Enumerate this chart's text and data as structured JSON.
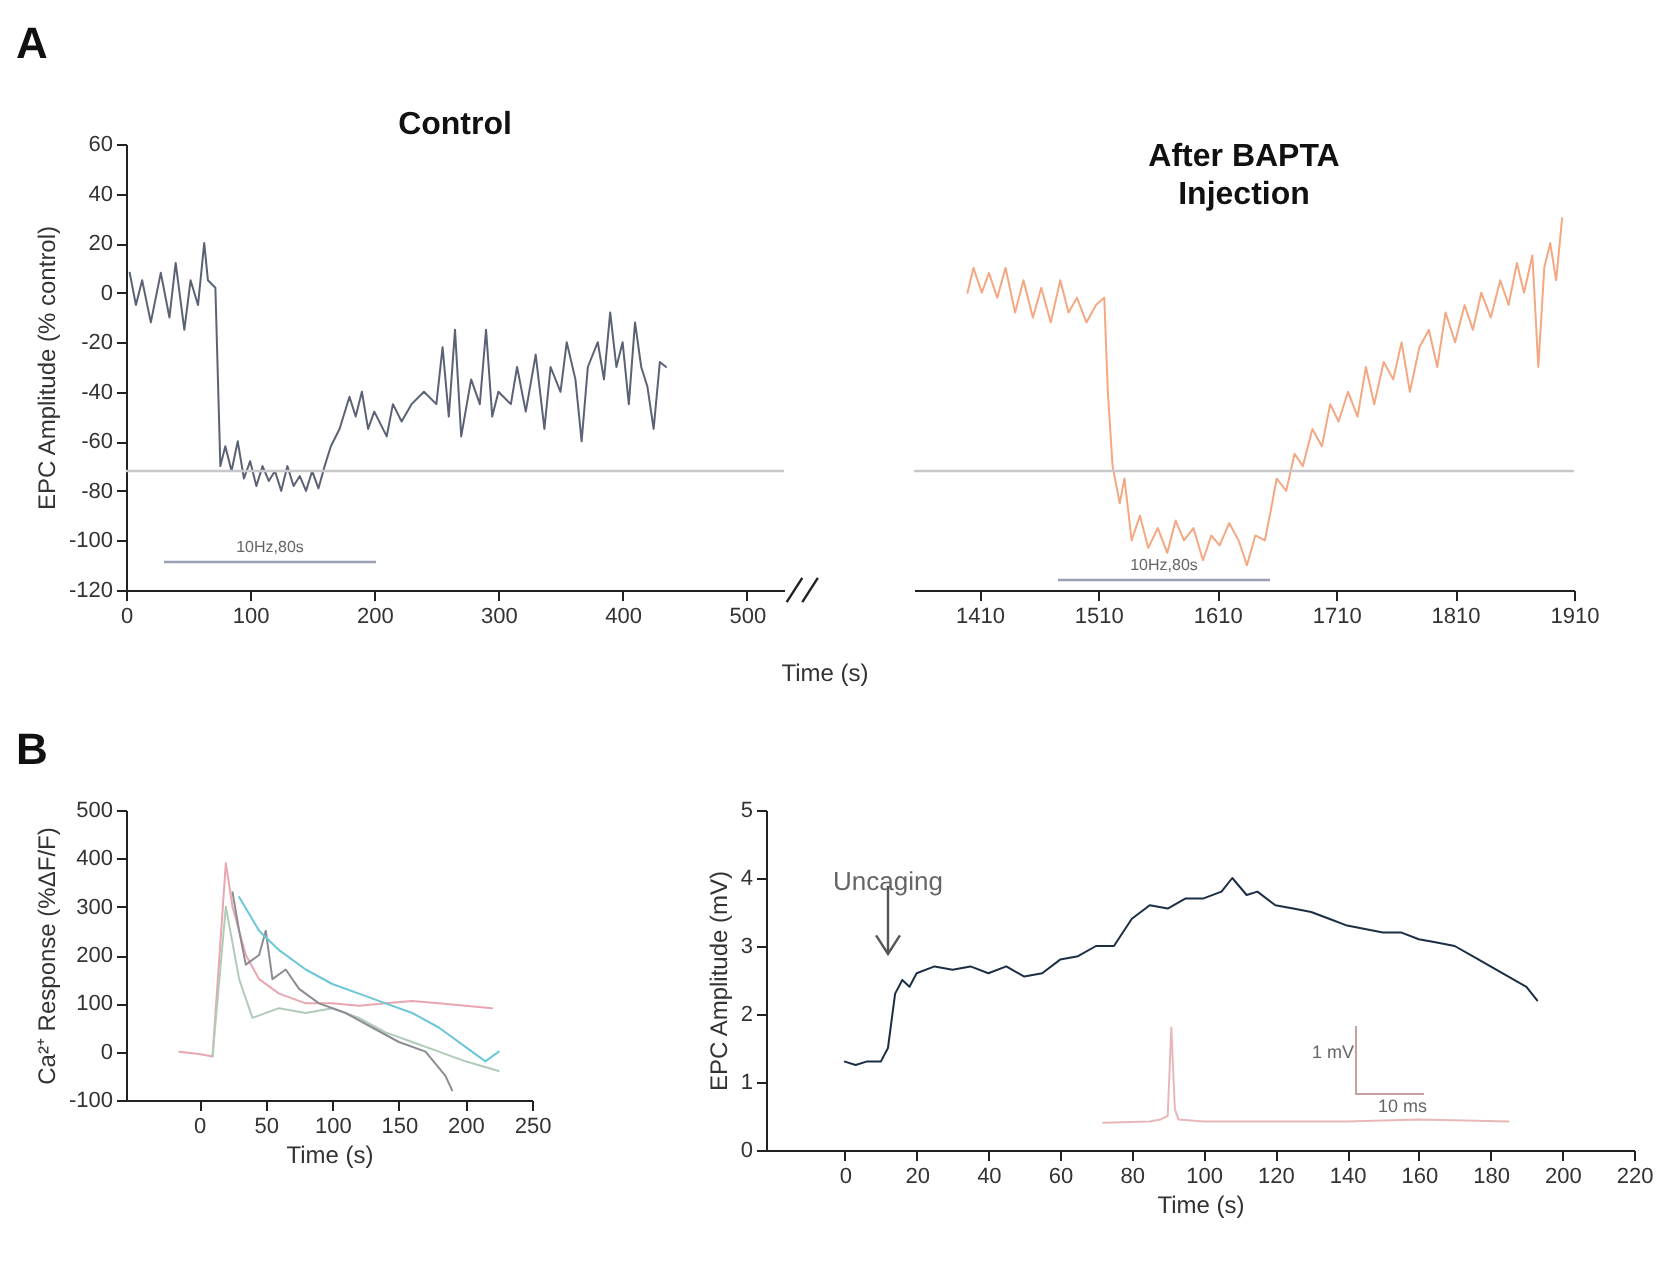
{
  "chart_data": [
    {
      "type": "line",
      "title": "Control",
      "ylabel": "EPC Amplitude (% control)",
      "xlabel": "Time (s)",
      "xlim": [
        0,
        530
      ],
      "ylim": [
        -120,
        60
      ],
      "xticks": [
        0,
        100,
        200,
        300,
        400,
        500
      ],
      "yticks": [
        -120,
        -100,
        -80,
        -60,
        -40,
        -20,
        0,
        20,
        40,
        60
      ],
      "grid": false,
      "legend": false,
      "x": [
        3,
        8,
        13,
        20,
        28,
        35,
        40,
        47,
        52,
        58,
        63,
        66,
        72,
        76,
        80,
        85,
        90,
        95,
        100,
        105,
        110,
        115,
        120,
        125,
        130,
        135,
        140,
        145,
        150,
        155,
        160,
        165,
        172,
        180,
        185,
        190,
        195,
        200,
        210,
        215,
        222,
        230,
        240,
        250,
        255,
        260,
        265,
        270,
        278,
        285,
        290,
        295,
        300,
        310,
        315,
        322,
        330,
        337,
        342,
        350,
        355,
        362,
        367,
        372,
        380,
        385,
        390,
        395,
        400,
        405,
        410,
        415,
        420,
        425,
        430,
        435
      ],
      "series": [
        {
          "color": "#5a6274",
          "values": [
            8,
            -5,
            5,
            -12,
            8,
            -10,
            12,
            -15,
            5,
            -5,
            20,
            5,
            2,
            -70,
            -62,
            -72,
            -60,
            -75,
            -68,
            -78,
            -70,
            -76,
            -72,
            -80,
            -70,
            -78,
            -74,
            -80,
            -72,
            -79,
            -70,
            -62,
            -55,
            -42,
            -50,
            -40,
            -55,
            -48,
            -58,
            -45,
            -52,
            -45,
            -40,
            -45,
            -22,
            -50,
            -15,
            -58,
            -35,
            -45,
            -15,
            -50,
            -40,
            -45,
            -30,
            -48,
            -25,
            -55,
            -30,
            -40,
            -20,
            -35,
            -60,
            -30,
            -20,
            -35,
            -8,
            -30,
            -20,
            -45,
            -12,
            -30,
            -38,
            -55,
            -28,
            -30
          ]
        }
      ],
      "ref_lines": [
        {
          "axis": "y",
          "value": -72,
          "color": "#c8c8cc"
        }
      ],
      "annotations": [
        "A",
        "10Hz,80s"
      ]
    },
    {
      "type": "line",
      "title": "After BAPTA Injection",
      "xlim": [
        1355,
        1910
      ],
      "ylim": [
        -120,
        60
      ],
      "xticks": [
        1410,
        1510,
        1610,
        1710,
        1810,
        1910
      ],
      "tick_labels": "x",
      "grid": false,
      "legend": false,
      "x": [
        1400,
        1405,
        1412,
        1418,
        1425,
        1432,
        1440,
        1447,
        1455,
        1462,
        1470,
        1478,
        1485,
        1492,
        1500,
        1508,
        1515,
        1518,
        1522,
        1528,
        1532,
        1538,
        1545,
        1552,
        1560,
        1568,
        1575,
        1582,
        1590,
        1598,
        1605,
        1612,
        1620,
        1628,
        1635,
        1642,
        1650,
        1655,
        1660,
        1668,
        1675,
        1682,
        1690,
        1698,
        1705,
        1712,
        1720,
        1728,
        1735,
        1742,
        1750,
        1758,
        1765,
        1772,
        1780,
        1788,
        1795,
        1802,
        1810,
        1818,
        1825,
        1832,
        1840,
        1848,
        1855,
        1862,
        1868,
        1875,
        1880,
        1885,
        1890,
        1895,
        1900
      ],
      "series": [
        {
          "color": "#f4a882",
          "values": [
            0,
            10,
            0,
            8,
            -2,
            10,
            -8,
            5,
            -10,
            2,
            -12,
            5,
            -8,
            -2,
            -12,
            -5,
            -2,
            -40,
            -70,
            -85,
            -75,
            -100,
            -90,
            -103,
            -95,
            -105,
            -92,
            -100,
            -95,
            -108,
            -98,
            -102,
            -93,
            -100,
            -110,
            -98,
            -100,
            -88,
            -75,
            -80,
            -65,
            -70,
            -55,
            -62,
            -45,
            -52,
            -40,
            -50,
            -30,
            -45,
            -28,
            -35,
            -20,
            -40,
            -22,
            -15,
            -30,
            -8,
            -20,
            -5,
            -15,
            0,
            -10,
            5,
            -5,
            12,
            0,
            15,
            -30,
            10,
            20,
            5,
            30
          ]
        }
      ],
      "ref_lines": [
        {
          "axis": "y",
          "value": -72,
          "color": "#c8c8cc"
        }
      ],
      "annotations": [
        "10Hz,80s"
      ]
    },
    {
      "type": "line",
      "ylabel": "Ca²⁺ Response (%ΔF/F)",
      "xlabel": "Time (s)",
      "xlim": [
        -55,
        250
      ],
      "ylim": [
        -100,
        500
      ],
      "xticks": [
        0,
        50,
        100,
        150,
        200,
        250
      ],
      "yticks": [
        -100,
        0,
        100,
        200,
        300,
        400,
        500
      ],
      "grid": false,
      "legend": false,
      "series": [
        {
          "color": "#eaa6b0",
          "x": [
            -15,
            0,
            10,
            20,
            25,
            35,
            45,
            60,
            80,
            100,
            120,
            140,
            160,
            180,
            200,
            220
          ],
          "values": [
            0,
            -5,
            -10,
            390,
            300,
            200,
            150,
            120,
            100,
            100,
            95,
            100,
            105,
            100,
            95,
            90
          ]
        },
        {
          "color": "#b0ccb8",
          "x": [
            10,
            20,
            30,
            40,
            60,
            80,
            100,
            120,
            140,
            160,
            180,
            200,
            225
          ],
          "values": [
            -10,
            300,
            150,
            70,
            90,
            80,
            90,
            70,
            40,
            20,
            0,
            -20,
            -40
          ]
        },
        {
          "color": "#8c8c94",
          "x": [
            25,
            30,
            35,
            45,
            50,
            55,
            65,
            75,
            90,
            110,
            130,
            150,
            170,
            185,
            190
          ],
          "values": [
            330,
            250,
            180,
            200,
            250,
            150,
            170,
            130,
            100,
            80,
            50,
            20,
            0,
            -50,
            -80
          ]
        },
        {
          "color": "#6cc6d8",
          "x": [
            30,
            45,
            60,
            80,
            100,
            120,
            140,
            160,
            180,
            200,
            215,
            225
          ],
          "values": [
            320,
            250,
            210,
            170,
            140,
            120,
            100,
            80,
            50,
            10,
            -20,
            0
          ]
        }
      ],
      "annotations": [
        "B"
      ]
    },
    {
      "type": "line",
      "ylabel": "EPC Amplitude (mV)",
      "xlabel": "Time (s)",
      "xlim": [
        -22,
        220
      ],
      "ylim": [
        0,
        5
      ],
      "xticks": [
        0,
        20,
        40,
        60,
        80,
        100,
        120,
        140,
        160,
        180,
        200,
        220
      ],
      "yticks": [
        0,
        1,
        2,
        3,
        4,
        5
      ],
      "grid": false,
      "legend": false,
      "series": [
        {
          "color": "#1c2e44",
          "x": [
            0,
            3,
            6,
            10,
            12,
            14,
            16,
            18,
            20,
            25,
            30,
            35,
            40,
            45,
            50,
            55,
            60,
            65,
            70,
            75,
            80,
            85,
            90,
            95,
            100,
            105,
            108,
            112,
            115,
            120,
            125,
            130,
            135,
            140,
            145,
            150,
            155,
            160,
            165,
            170,
            175,
            180,
            185,
            190,
            193
          ],
          "values": [
            1.3,
            1.25,
            1.3,
            1.3,
            1.5,
            2.3,
            2.5,
            2.4,
            2.6,
            2.7,
            2.65,
            2.7,
            2.6,
            2.7,
            2.55,
            2.6,
            2.8,
            2.85,
            3.0,
            3.0,
            3.4,
            3.6,
            3.55,
            3.7,
            3.7,
            3.8,
            4.0,
            3.75,
            3.8,
            3.6,
            3.55,
            3.5,
            3.4,
            3.3,
            3.25,
            3.2,
            3.2,
            3.1,
            3.05,
            3.0,
            2.85,
            2.7,
            2.55,
            2.4,
            2.2
          ]
        },
        {
          "color": "#e8b8b8",
          "x": [
            72,
            85,
            88,
            90,
            91,
            92,
            93,
            100,
            140,
            160,
            185
          ],
          "values": [
            0.4,
            0.42,
            0.45,
            0.5,
            1.8,
            0.6,
            0.45,
            0.42,
            0.42,
            0.45,
            0.42
          ]
        }
      ],
      "annotations": [
        "Uncaging",
        "1 mV",
        "10 ms"
      ]
    }
  ]
}
